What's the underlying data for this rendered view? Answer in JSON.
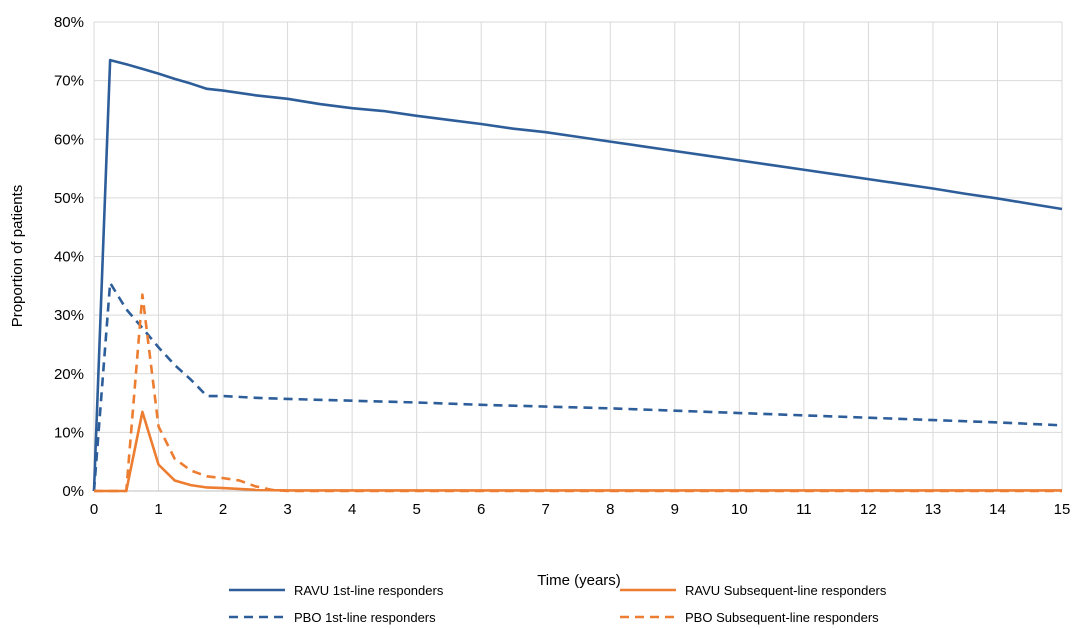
{
  "chart_data": {
    "type": "line",
    "xlabel": "Time (years)",
    "ylabel": "Proportion of patients",
    "xlim": [
      0,
      15
    ],
    "ylim": [
      0,
      80
    ],
    "x_ticks": [
      "0",
      "1",
      "2",
      "3",
      "4",
      "5",
      "6",
      "7",
      "8",
      "9",
      "10",
      "11",
      "12",
      "13",
      "14",
      "15"
    ],
    "y_ticks": [
      "0%",
      "10%",
      "20%",
      "30%",
      "40%",
      "50%",
      "60%",
      "70%",
      "80%"
    ],
    "grid": true,
    "legend_position": "bottom",
    "series": [
      {
        "name": "RAVU 1st-line responders",
        "color": "#2E5E9A",
        "dash": "solid",
        "points": [
          [
            0,
            0
          ],
          [
            0.25,
            73.5
          ],
          [
            0.5,
            72.8
          ],
          [
            0.75,
            72
          ],
          [
            1,
            71.2
          ],
          [
            1.25,
            70.3
          ],
          [
            1.5,
            69.5
          ],
          [
            1.75,
            68.6
          ],
          [
            2,
            68.3
          ],
          [
            2.5,
            67.5
          ],
          [
            3,
            66.9
          ],
          [
            3.5,
            66
          ],
          [
            4,
            65.3
          ],
          [
            4.5,
            64.8
          ],
          [
            5,
            64
          ],
          [
            5.5,
            63.3
          ],
          [
            6,
            62.6
          ],
          [
            6.5,
            61.8
          ],
          [
            7,
            61.2
          ],
          [
            7.5,
            60.4
          ],
          [
            8,
            59.6
          ],
          [
            8.5,
            58.8
          ],
          [
            9,
            58
          ],
          [
            9.5,
            57.2
          ],
          [
            10,
            56.4
          ],
          [
            10.5,
            55.6
          ],
          [
            11,
            54.8
          ],
          [
            11.5,
            54
          ],
          [
            12,
            53.2
          ],
          [
            12.5,
            52.4
          ],
          [
            13,
            51.6
          ],
          [
            13.5,
            50.7
          ],
          [
            14,
            49.9
          ],
          [
            14.5,
            49
          ],
          [
            15,
            48.1
          ]
        ]
      },
      {
        "name": "RAVU Subsequent-line responders",
        "color": "#ED7D31",
        "dash": "solid",
        "points": [
          [
            0,
            0
          ],
          [
            0.5,
            0
          ],
          [
            0.75,
            13.5
          ],
          [
            1,
            4.5
          ],
          [
            1.25,
            1.8
          ],
          [
            1.5,
            1
          ],
          [
            1.75,
            0.6
          ],
          [
            2,
            0.5
          ],
          [
            2.5,
            0.2
          ],
          [
            3,
            0.1
          ],
          [
            4,
            0.1
          ],
          [
            5,
            0.1
          ],
          [
            6,
            0.1
          ],
          [
            7,
            0.1
          ],
          [
            8,
            0.1
          ],
          [
            9,
            0.1
          ],
          [
            10,
            0.1
          ],
          [
            11,
            0.1
          ],
          [
            12,
            0.1
          ],
          [
            13,
            0.1
          ],
          [
            14,
            0.1
          ],
          [
            15,
            0.1
          ]
        ]
      },
      {
        "name": "PBO 1st-line responders",
        "color": "#2E5E9A",
        "dash": "dashed",
        "points": [
          [
            0,
            0
          ],
          [
            0.25,
            35.5
          ],
          [
            0.5,
            31
          ],
          [
            0.75,
            27.8
          ],
          [
            1,
            24.5
          ],
          [
            1.25,
            21.5
          ],
          [
            1.5,
            19
          ],
          [
            1.75,
            16.2
          ],
          [
            2,
            16.2
          ],
          [
            2.5,
            15.9
          ],
          [
            3,
            15.7
          ],
          [
            4,
            15.4
          ],
          [
            5,
            15.1
          ],
          [
            6,
            14.7
          ],
          [
            7,
            14.4
          ],
          [
            8,
            14.1
          ],
          [
            9,
            13.7
          ],
          [
            10,
            13.3
          ],
          [
            11,
            12.9
          ],
          [
            12,
            12.5
          ],
          [
            13,
            12.1
          ],
          [
            14,
            11.7
          ],
          [
            15,
            11.2
          ]
        ]
      },
      {
        "name": "PBO Subsequent-line responders",
        "color": "#ED7D31",
        "dash": "dashed",
        "points": [
          [
            0,
            0
          ],
          [
            0.5,
            0
          ],
          [
            0.75,
            33.5
          ],
          [
            1,
            11
          ],
          [
            1.25,
            5.5
          ],
          [
            1.5,
            3.5
          ],
          [
            1.75,
            2.5
          ],
          [
            2,
            2.2
          ],
          [
            2.25,
            1.8
          ],
          [
            2.5,
            0.8
          ],
          [
            2.75,
            0.2
          ],
          [
            3,
            0
          ],
          [
            4,
            0
          ],
          [
            5,
            0
          ],
          [
            6,
            0
          ],
          [
            7,
            0
          ],
          [
            8,
            0
          ],
          [
            9,
            0
          ],
          [
            10,
            0
          ],
          [
            11,
            0
          ],
          [
            12,
            0
          ],
          [
            13,
            0
          ],
          [
            14,
            0
          ],
          [
            15,
            0
          ]
        ]
      }
    ]
  }
}
